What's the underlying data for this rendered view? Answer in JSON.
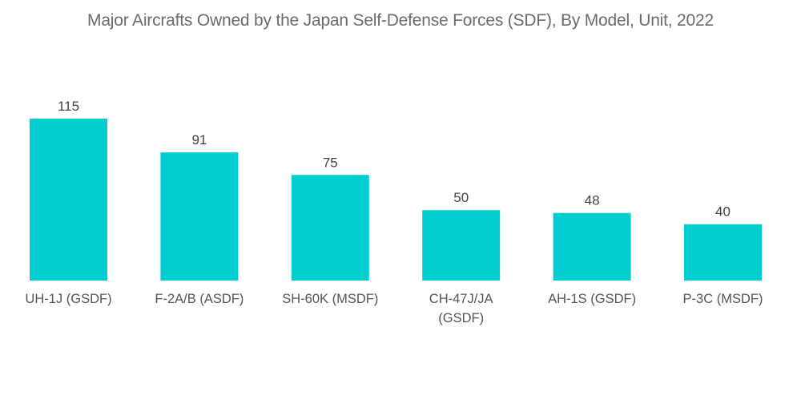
{
  "chart_data": {
    "type": "bar",
    "title": "Major Aircrafts Owned by the Japan Self-Defense Forces (SDF), By Model, Unit, 2022",
    "xlabel": "",
    "ylabel": "",
    "categories": [
      [
        "UH-1J (GSDF)"
      ],
      [
        "F-2A/B (ASDF)"
      ],
      [
        "SH-60K (MSDF)"
      ],
      [
        "CH-47J/JA",
        "(GSDF)"
      ],
      [
        "AH-1S (GSDF)"
      ],
      [
        "P-3C (MSDF)"
      ]
    ],
    "values": [
      115,
      91,
      75,
      50,
      48,
      40
    ],
    "data_labels": [
      "115",
      "91",
      "75",
      "50",
      "48",
      "40"
    ],
    "ylim": [
      0,
      115
    ],
    "grid": false,
    "legend": "none",
    "bar_color": "#00CED1"
  }
}
